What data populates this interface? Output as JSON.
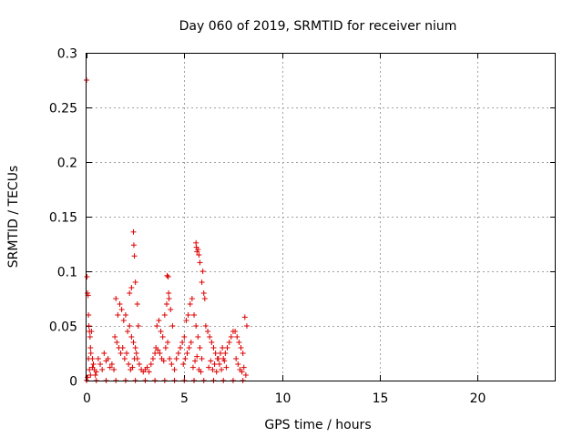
{
  "chart_data": {
    "type": "scatter",
    "title": "Day 060 of 2019, SRMTID for receiver nium",
    "xlabel": "GPS time / hours",
    "ylabel": "SRMTID / TECUs",
    "xlim": [
      0,
      24
    ],
    "ylim": [
      0,
      0.3
    ],
    "x_ticks": [
      "0",
      "5",
      "10",
      "15",
      "20"
    ],
    "y_ticks": [
      "0",
      "0.05",
      "0.1",
      "0.15",
      "0.2",
      "0.25",
      "0.3"
    ],
    "grid": true,
    "marker": "+",
    "color": "#dd0000",
    "series": [
      {
        "x": [
          0.0,
          0.02,
          0.05,
          0.08,
          0.1,
          0.12,
          0.15,
          0.18,
          0.2,
          0.22,
          0.25,
          0.3,
          0.35,
          0.4,
          0.45,
          0.05,
          0.1,
          0.15,
          0.2,
          0.3,
          0.5,
          0.6,
          0.7,
          0.8,
          0.9,
          1.0,
          1.1,
          1.2,
          1.3,
          1.4,
          1.5,
          1.6,
          1.7,
          1.8,
          1.9,
          2.0,
          2.1,
          2.2,
          2.3,
          2.4,
          2.5,
          2.6,
          2.7,
          2.8,
          2.9,
          1.45,
          1.55,
          1.65,
          1.75,
          1.85,
          1.95,
          2.05,
          2.15,
          2.25,
          2.35,
          2.45,
          2.55,
          2.4,
          2.42,
          2.45,
          2.5,
          2.3,
          2.2,
          2.6,
          2.65,
          3.0,
          3.1,
          3.2,
          3.3,
          3.4,
          3.5,
          3.6,
          3.7,
          3.8,
          3.9,
          4.0,
          4.1,
          4.2,
          4.3,
          4.4,
          3.55,
          3.65,
          3.75,
          3.85,
          3.95,
          4.05,
          4.15,
          4.25,
          4.35,
          4.12,
          4.18,
          4.22,
          4.5,
          4.6,
          4.7,
          4.8,
          4.9,
          5.0,
          5.1,
          5.2,
          5.3,
          5.4,
          5.5,
          5.6,
          5.7,
          5.8,
          5.9,
          4.95,
          5.05,
          5.15,
          5.25,
          5.35,
          5.45,
          5.55,
          5.65,
          5.75,
          5.85,
          5.6,
          5.62,
          5.65,
          5.7,
          5.75,
          5.8,
          5.9,
          6.0,
          5.95,
          6.05,
          6.1,
          6.2,
          6.3,
          6.4,
          6.5,
          6.6,
          6.7,
          6.8,
          6.9,
          7.0,
          7.1,
          7.2,
          7.3,
          7.4,
          7.5,
          6.25,
          6.35,
          6.45,
          6.55,
          6.65,
          6.75,
          6.85,
          6.95,
          7.05,
          7.15,
          7.6,
          7.7,
          7.8,
          7.9,
          8.0,
          8.1,
          8.2,
          7.65,
          7.75,
          7.85,
          7.95,
          8.05,
          8.15,
          0.0,
          0.5,
          1.0,
          1.5,
          2.0,
          2.5,
          3.0,
          3.5,
          4.0,
          4.5,
          5.0,
          5.5,
          6.0,
          6.5,
          7.0,
          7.5,
          8.0
        ],
        "y": [
          0.275,
          0.095,
          0.08,
          0.078,
          0.06,
          0.05,
          0.045,
          0.04,
          0.03,
          0.025,
          0.045,
          0.02,
          0.015,
          0.01,
          0.005,
          0.003,
          0.02,
          0.01,
          0.005,
          0.012,
          0.008,
          0.02,
          0.015,
          0.01,
          0.025,
          0.018,
          0.02,
          0.012,
          0.015,
          0.01,
          0.075,
          0.06,
          0.07,
          0.065,
          0.055,
          0.06,
          0.045,
          0.05,
          0.04,
          0.035,
          0.03,
          0.02,
          0.015,
          0.01,
          0.008,
          0.04,
          0.035,
          0.03,
          0.025,
          0.03,
          0.02,
          0.025,
          0.015,
          0.01,
          0.012,
          0.02,
          0.025,
          0.136,
          0.124,
          0.114,
          0.09,
          0.085,
          0.08,
          0.07,
          0.05,
          0.01,
          0.012,
          0.008,
          0.015,
          0.02,
          0.025,
          0.05,
          0.055,
          0.045,
          0.04,
          0.06,
          0.07,
          0.08,
          0.065,
          0.05,
          0.03,
          0.028,
          0.025,
          0.02,
          0.018,
          0.03,
          0.035,
          0.02,
          0.015,
          0.096,
          0.095,
          0.075,
          0.01,
          0.02,
          0.025,
          0.03,
          0.035,
          0.04,
          0.055,
          0.06,
          0.07,
          0.075,
          0.06,
          0.05,
          0.04,
          0.03,
          0.02,
          0.015,
          0.02,
          0.025,
          0.03,
          0.035,
          0.012,
          0.018,
          0.022,
          0.01,
          0.008,
          0.126,
          0.122,
          0.118,
          0.12,
          0.115,
          0.108,
          0.09,
          0.08,
          0.1,
          0.075,
          0.05,
          0.045,
          0.04,
          0.035,
          0.03,
          0.025,
          0.02,
          0.015,
          0.01,
          0.02,
          0.025,
          0.03,
          0.035,
          0.04,
          0.045,
          0.012,
          0.018,
          0.01,
          0.015,
          0.008,
          0.02,
          0.025,
          0.03,
          0.018,
          0.012,
          0.045,
          0.04,
          0.035,
          0.03,
          0.025,
          0.058,
          0.05,
          0.02,
          0.015,
          0.01,
          0.008,
          0.012,
          0.005,
          0.0,
          0.0,
          0.0,
          0.0,
          0.0,
          0.0,
          0.0,
          0.0,
          0.0,
          0.0,
          0.0,
          0.0,
          0.0,
          0.0,
          0.0,
          0.0,
          0.0
        ]
      }
    ]
  }
}
